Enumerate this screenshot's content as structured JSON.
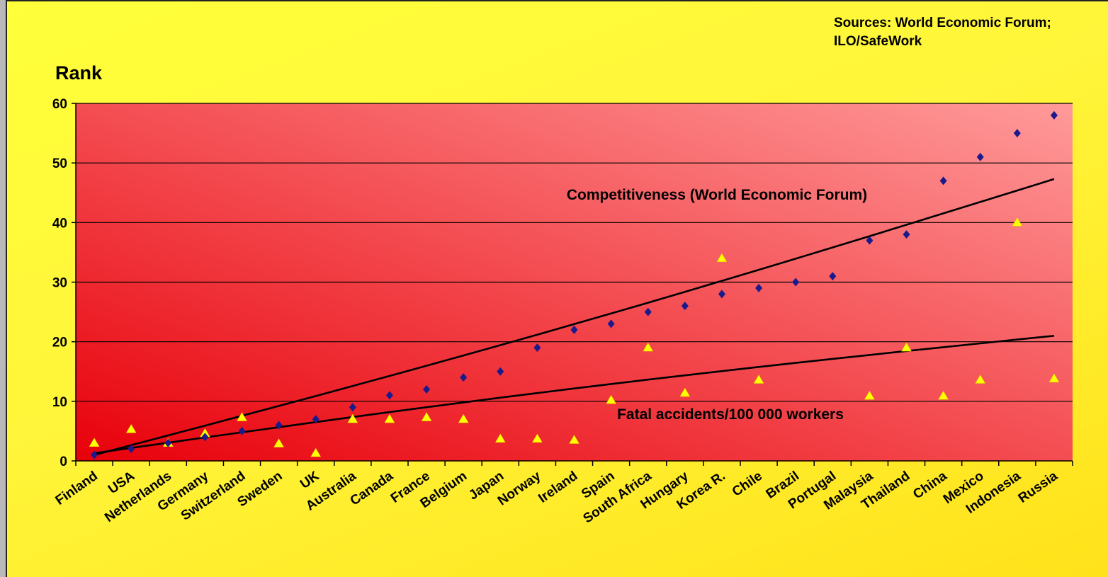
{
  "source_note": "Sources: World Economic Forum; ILO/SafeWork",
  "colors": {
    "plot_left": "#e8000a",
    "plot_right": "#ff9a9a",
    "figure_bg": "#fff23a",
    "competitiveness_marker": "#1a1a8c",
    "fatal_marker": "#ffff00",
    "trend_line": "#000000"
  },
  "chart_data": {
    "type": "scatter",
    "ylabel": "Rank",
    "xlabel": "",
    "ylim": [
      0,
      60
    ],
    "yticks": [
      0,
      10,
      20,
      30,
      40,
      50,
      60
    ],
    "grid": true,
    "categories": [
      "Finland",
      "USA",
      "Netherlands",
      "Germany",
      "Switzerland",
      "Sweden",
      "UK",
      "Australia",
      "Canada",
      "France",
      "Belgium",
      "Japan",
      "Norway",
      "Ireland",
      "Spain",
      "South Africa",
      "Hungary",
      "Korea R.",
      "Chile",
      "Brazil",
      "Portugal",
      "Malaysia",
      "Thailand",
      "China",
      "Mexico",
      "Indonesia",
      "Russia"
    ],
    "series": [
      {
        "marker": "diamond",
        "label": "Competitiveness (World Economic Forum)",
        "values": [
          1,
          2,
          3,
          4,
          5,
          6,
          7,
          9,
          11,
          12,
          14,
          15,
          19,
          22,
          23,
          25,
          26,
          28,
          29,
          30,
          31,
          37,
          38,
          47,
          51,
          55,
          58
        ],
        "trend": [
          1,
          47.3
        ]
      },
      {
        "marker": "triangle",
        "label": "Fatal accidents/100 000 workers",
        "values": [
          3,
          5.3,
          3,
          4.6,
          7.3,
          2.9,
          1.3,
          7,
          7,
          7.3,
          7,
          3.7,
          3.7,
          3.5,
          10.2,
          19,
          11.4,
          34,
          13.6,
          null,
          null,
          10.9,
          19,
          10.9,
          13.6,
          40,
          13.8
        ],
        "trend": [
          1.3,
          21
        ]
      }
    ]
  }
}
